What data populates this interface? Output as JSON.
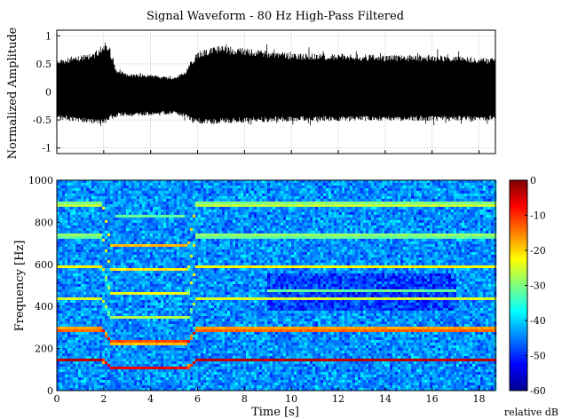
{
  "chart_data": [
    {
      "type": "line",
      "title": "Signal Waveform - 80 Hz High-Pass Filtered",
      "xlabel": "",
      "ylabel": "Normalized Amplitude",
      "xlim": [
        0,
        18.7
      ],
      "ylim": [
        -1.1,
        1.1
      ],
      "grid": true,
      "yticks": [
        "-1",
        "-0.5",
        "0",
        "0.5",
        "1"
      ],
      "xticks": [
        "2",
        "4",
        "6",
        "8",
        "10",
        "12",
        "14",
        "16",
        "18"
      ],
      "envelope": {
        "x": [
          0,
          0.5,
          1.0,
          1.5,
          2.0,
          2.2,
          2.5,
          3.0,
          4.0,
          5.0,
          5.5,
          5.8,
          6.2,
          7.0,
          8.0,
          9.0,
          10.0,
          12.0,
          14.0,
          16.0,
          17.0,
          18.0,
          18.7
        ],
        "upper": [
          0.55,
          0.62,
          0.66,
          0.7,
          0.84,
          0.88,
          0.42,
          0.33,
          0.3,
          0.26,
          0.38,
          0.62,
          0.76,
          0.83,
          0.78,
          0.74,
          0.7,
          0.68,
          0.66,
          0.66,
          0.64,
          0.62,
          0.6
        ],
        "lower": [
          -0.5,
          -0.52,
          -0.54,
          -0.56,
          -0.58,
          -0.52,
          -0.46,
          -0.44,
          -0.42,
          -0.4,
          -0.48,
          -0.55,
          -0.58,
          -0.56,
          -0.55,
          -0.54,
          -0.53,
          -0.52,
          -0.52,
          -0.52,
          -0.52,
          -0.52,
          -0.5
        ]
      }
    },
    {
      "type": "heatmap",
      "title": "",
      "xlabel": "Time [s]",
      "ylabel": "Frequency [Hz]",
      "xlim": [
        0,
        18.7
      ],
      "ylim": [
        0,
        1000
      ],
      "xticks": [
        "0",
        "2",
        "4",
        "6",
        "8",
        "10",
        "12",
        "14",
        "16",
        "18"
      ],
      "yticks": [
        "0",
        "200",
        "400",
        "600",
        "800",
        "1000"
      ],
      "colorbar": {
        "label": "relative dB",
        "range": [
          -60,
          0
        ],
        "ticks": [
          "0",
          "-10",
          "-20",
          "-30",
          "-40",
          "-50",
          "-60"
        ]
      },
      "harmonics": [
        {
          "base": 145,
          "dip": 110,
          "level": -3
        },
        {
          "base": 290,
          "dip": 230,
          "level": -5
        },
        {
          "base": 435,
          "dip": 345,
          "level": -22
        },
        {
          "base": 590,
          "dip": 460,
          "level": -20
        },
        {
          "base": 735,
          "dip": 575,
          "level": -20
        },
        {
          "base": 885,
          "dip": 690,
          "level": -18
        }
      ],
      "dip_interval": [
        2.3,
        5.6
      ],
      "extra_lines": [
        {
          "freq": 475,
          "t_start": 9,
          "t_end": 17,
          "level": -32
        },
        {
          "freq": 435,
          "t_start": 9,
          "t_end": 17,
          "level": -30
        },
        {
          "freq": 830,
          "t_start": 2.5,
          "t_end": 5.5,
          "level": -32
        }
      ]
    }
  ]
}
